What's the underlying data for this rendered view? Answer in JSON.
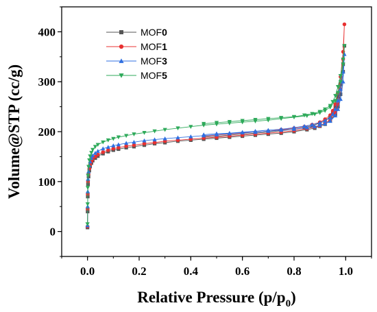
{
  "chart_data": {
    "type": "scatter",
    "xlabel": "Relative Pressure (p/p",
    "xlabel_subscript": "0",
    "xlabel_suffix": ")",
    "ylabel": "Volume@STP (cc/g)",
    "xlim": [
      -0.1,
      1.1
    ],
    "ylim": [
      -50,
      450
    ],
    "x_ticks": [
      0.0,
      0.2,
      0.4,
      0.6,
      0.8,
      1.0
    ],
    "x_tick_labels": [
      "0.0",
      "0.2",
      "0.4",
      "0.6",
      "0.8",
      "1.0"
    ],
    "y_ticks": [
      0,
      100,
      200,
      300,
      400
    ],
    "y_tick_labels": [
      "0",
      "100",
      "200",
      "300",
      "400"
    ],
    "grid": false,
    "legend_position": "top-left",
    "series": [
      {
        "legend_prefix": "MOF",
        "legend_bold": "0",
        "color": "#555555",
        "marker": "square",
        "adsorption": [
          [
            0.0,
            8
          ],
          [
            0.0005,
            40
          ],
          [
            0.001,
            70
          ],
          [
            0.002,
            95
          ],
          [
            0.004,
            110
          ],
          [
            0.007,
            122
          ],
          [
            0.01,
            130
          ],
          [
            0.015,
            137
          ],
          [
            0.02,
            142
          ],
          [
            0.03,
            147
          ],
          [
            0.04,
            151
          ],
          [
            0.06,
            156
          ],
          [
            0.08,
            160
          ],
          [
            0.1,
            163
          ],
          [
            0.12,
            165
          ],
          [
            0.15,
            168
          ],
          [
            0.18,
            170
          ],
          [
            0.22,
            173
          ],
          [
            0.26,
            176
          ],
          [
            0.3,
            178
          ],
          [
            0.35,
            181
          ],
          [
            0.4,
            183
          ],
          [
            0.45,
            185
          ],
          [
            0.5,
            187
          ],
          [
            0.55,
            189
          ],
          [
            0.6,
            191
          ],
          [
            0.65,
            193
          ],
          [
            0.7,
            195
          ],
          [
            0.75,
            197
          ],
          [
            0.8,
            200
          ],
          [
            0.85,
            204
          ],
          [
            0.88,
            207
          ],
          [
            0.9,
            211
          ],
          [
            0.92,
            215
          ],
          [
            0.94,
            222
          ],
          [
            0.96,
            235
          ],
          [
            0.97,
            250
          ],
          [
            0.98,
            275
          ],
          [
            0.99,
            320
          ],
          [
            0.995,
            372
          ]
        ],
        "desorption": [
          [
            0.995,
            372
          ],
          [
            0.99,
            335
          ],
          [
            0.98,
            295
          ],
          [
            0.97,
            270
          ],
          [
            0.96,
            250
          ],
          [
            0.95,
            238
          ],
          [
            0.94,
            230
          ],
          [
            0.92,
            222
          ],
          [
            0.9,
            217
          ],
          [
            0.87,
            212
          ],
          [
            0.84,
            208
          ],
          [
            0.8,
            205
          ],
          [
            0.75,
            202
          ],
          [
            0.7,
            199
          ],
          [
            0.65,
            197
          ],
          [
            0.6,
            195
          ],
          [
            0.55,
            193
          ],
          [
            0.5,
            191
          ],
          [
            0.45,
            189
          ]
        ]
      },
      {
        "legend_prefix": "MOF",
        "legend_bold": "1",
        "color": "#e83030",
        "marker": "circle",
        "adsorption": [
          [
            0.0,
            10
          ],
          [
            0.0005,
            45
          ],
          [
            0.001,
            75
          ],
          [
            0.002,
            100
          ],
          [
            0.004,
            115
          ],
          [
            0.007,
            126
          ],
          [
            0.01,
            134
          ],
          [
            0.015,
            140
          ],
          [
            0.02,
            145
          ],
          [
            0.03,
            150
          ],
          [
            0.04,
            154
          ],
          [
            0.06,
            159
          ],
          [
            0.08,
            163
          ],
          [
            0.1,
            166
          ],
          [
            0.12,
            168
          ],
          [
            0.15,
            171
          ],
          [
            0.18,
            173
          ],
          [
            0.22,
            176
          ],
          [
            0.26,
            178
          ],
          [
            0.3,
            181
          ],
          [
            0.35,
            183
          ],
          [
            0.4,
            185
          ],
          [
            0.45,
            187
          ],
          [
            0.5,
            189
          ],
          [
            0.55,
            191
          ],
          [
            0.6,
            193
          ],
          [
            0.65,
            195
          ],
          [
            0.7,
            197
          ],
          [
            0.75,
            199
          ],
          [
            0.8,
            202
          ],
          [
            0.85,
            206
          ],
          [
            0.88,
            209
          ],
          [
            0.9,
            212
          ],
          [
            0.92,
            217
          ],
          [
            0.94,
            224
          ],
          [
            0.96,
            238
          ],
          [
            0.97,
            255
          ],
          [
            0.98,
            285
          ],
          [
            0.99,
            345
          ],
          [
            0.995,
            415
          ]
        ],
        "desorption": [
          [
            0.995,
            415
          ],
          [
            0.99,
            360
          ],
          [
            0.98,
            310
          ],
          [
            0.97,
            278
          ],
          [
            0.96,
            255
          ],
          [
            0.95,
            242
          ],
          [
            0.94,
            233
          ],
          [
            0.92,
            225
          ],
          [
            0.9,
            219
          ],
          [
            0.87,
            214
          ],
          [
            0.84,
            210
          ],
          [
            0.8,
            207
          ],
          [
            0.75,
            204
          ],
          [
            0.7,
            201
          ],
          [
            0.65,
            199
          ],
          [
            0.6,
            197
          ],
          [
            0.55,
            195
          ],
          [
            0.5,
            193
          ],
          [
            0.45,
            191
          ]
        ]
      },
      {
        "legend_prefix": "MOF",
        "legend_bold": "3",
        "color": "#2f6fe0",
        "marker": "triangle-up",
        "adsorption": [
          [
            0.0,
            12
          ],
          [
            0.0005,
            50
          ],
          [
            0.001,
            80
          ],
          [
            0.002,
            105
          ],
          [
            0.004,
            120
          ],
          [
            0.007,
            132
          ],
          [
            0.01,
            140
          ],
          [
            0.015,
            147
          ],
          [
            0.02,
            152
          ],
          [
            0.03,
            157
          ],
          [
            0.04,
            161
          ],
          [
            0.06,
            166
          ],
          [
            0.08,
            169
          ],
          [
            0.1,
            172
          ],
          [
            0.12,
            174
          ],
          [
            0.15,
            177
          ],
          [
            0.18,
            179
          ],
          [
            0.22,
            182
          ],
          [
            0.26,
            184
          ],
          [
            0.3,
            186
          ],
          [
            0.35,
            188
          ],
          [
            0.4,
            190
          ],
          [
            0.45,
            192
          ],
          [
            0.5,
            194
          ],
          [
            0.55,
            196
          ],
          [
            0.6,
            198
          ],
          [
            0.65,
            199
          ],
          [
            0.7,
            201
          ],
          [
            0.75,
            203
          ],
          [
            0.8,
            205
          ],
          [
            0.85,
            208
          ],
          [
            0.88,
            210
          ],
          [
            0.9,
            213
          ],
          [
            0.92,
            216
          ],
          [
            0.94,
            221
          ],
          [
            0.96,
            232
          ],
          [
            0.97,
            245
          ],
          [
            0.98,
            265
          ],
          [
            0.99,
            300
          ],
          [
            0.995,
            355
          ]
        ],
        "desorption": [
          [
            0.995,
            355
          ],
          [
            0.99,
            320
          ],
          [
            0.98,
            285
          ],
          [
            0.97,
            262
          ],
          [
            0.96,
            245
          ],
          [
            0.95,
            235
          ],
          [
            0.94,
            228
          ],
          [
            0.92,
            222
          ],
          [
            0.9,
            218
          ],
          [
            0.87,
            214
          ],
          [
            0.84,
            211
          ],
          [
            0.8,
            208
          ],
          [
            0.75,
            205
          ],
          [
            0.7,
            203
          ],
          [
            0.65,
            201
          ],
          [
            0.6,
            199
          ],
          [
            0.55,
            197
          ],
          [
            0.5,
            196
          ],
          [
            0.45,
            194
          ]
        ]
      },
      {
        "legend_prefix": "MOF",
        "legend_bold": "5",
        "color": "#2eaa5a",
        "marker": "triangle-down",
        "adsorption": [
          [
            0.0,
            15
          ],
          [
            0.0005,
            55
          ],
          [
            0.001,
            88
          ],
          [
            0.002,
            112
          ],
          [
            0.004,
            130
          ],
          [
            0.007,
            143
          ],
          [
            0.01,
            151
          ],
          [
            0.015,
            158
          ],
          [
            0.02,
            164
          ],
          [
            0.03,
            170
          ],
          [
            0.04,
            174
          ],
          [
            0.06,
            179
          ],
          [
            0.08,
            183
          ],
          [
            0.1,
            186
          ],
          [
            0.12,
            189
          ],
          [
            0.15,
            192
          ],
          [
            0.18,
            195
          ],
          [
            0.22,
            198
          ],
          [
            0.26,
            201
          ],
          [
            0.3,
            204
          ],
          [
            0.35,
            207
          ],
          [
            0.4,
            210
          ],
          [
            0.45,
            213
          ],
          [
            0.5,
            215
          ],
          [
            0.55,
            217
          ],
          [
            0.6,
            219
          ],
          [
            0.65,
            221
          ],
          [
            0.7,
            223
          ],
          [
            0.75,
            226
          ],
          [
            0.8,
            229
          ],
          [
            0.85,
            232
          ],
          [
            0.88,
            235
          ],
          [
            0.9,
            238
          ],
          [
            0.92,
            242
          ],
          [
            0.94,
            249
          ],
          [
            0.96,
            262
          ],
          [
            0.97,
            278
          ],
          [
            0.98,
            300
          ],
          [
            0.99,
            335
          ],
          [
            0.995,
            372
          ]
        ],
        "desorption": [
          [
            0.995,
            372
          ],
          [
            0.99,
            345
          ],
          [
            0.98,
            312
          ],
          [
            0.97,
            290
          ],
          [
            0.96,
            272
          ],
          [
            0.95,
            260
          ],
          [
            0.94,
            252
          ],
          [
            0.92,
            245
          ],
          [
            0.9,
            240
          ],
          [
            0.87,
            236
          ],
          [
            0.84,
            233
          ],
          [
            0.8,
            230
          ],
          [
            0.75,
            228
          ],
          [
            0.7,
            226
          ],
          [
            0.65,
            224
          ],
          [
            0.6,
            222
          ],
          [
            0.55,
            220
          ],
          [
            0.5,
            218
          ],
          [
            0.45,
            216
          ]
        ]
      }
    ]
  }
}
